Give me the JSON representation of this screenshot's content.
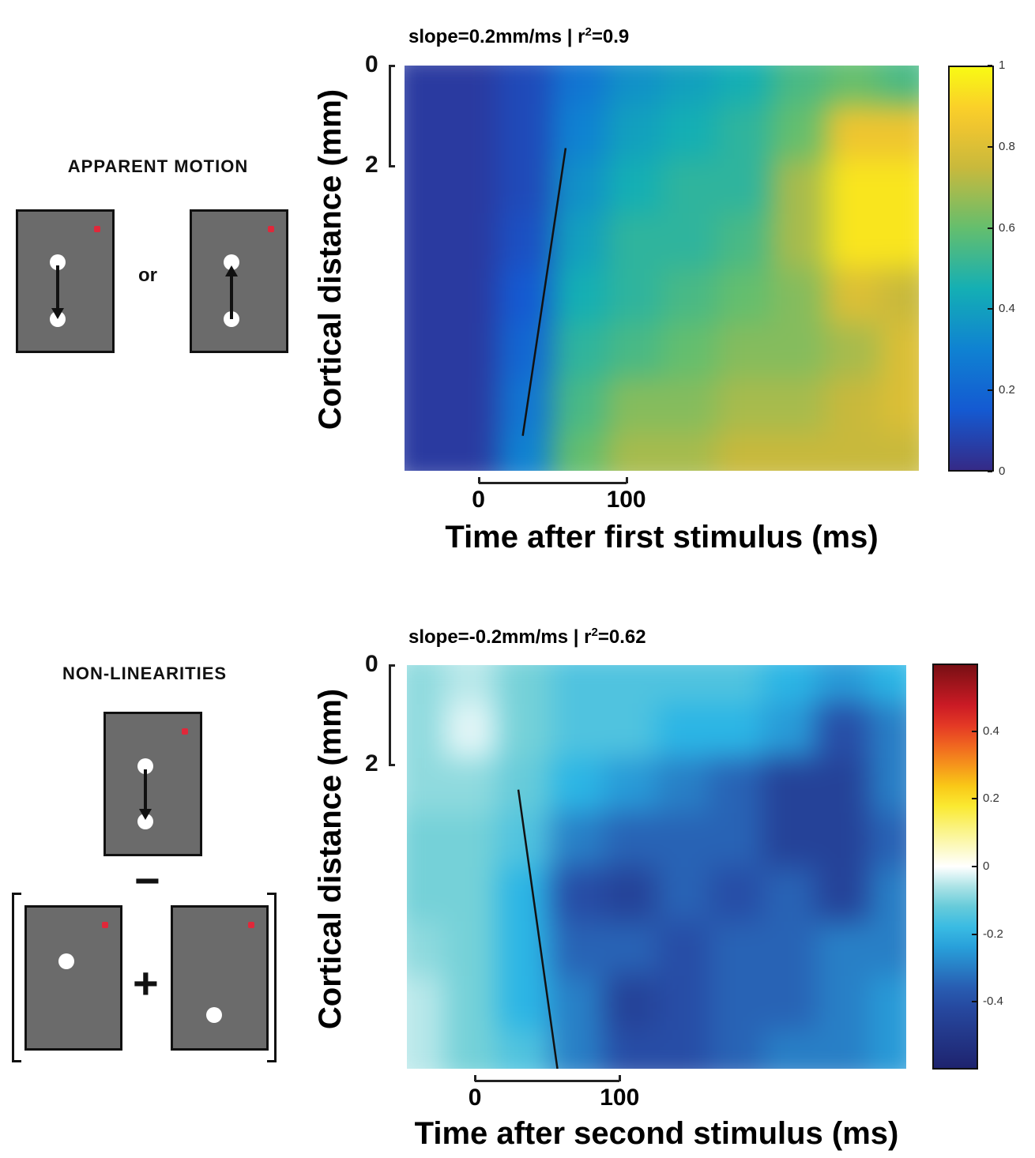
{
  "panels": {
    "top": {
      "stim_label": "APPARENT MOTION",
      "or_label": "or"
    },
    "bottom": {
      "stim_label": "NON-LINEARITIES",
      "minus": "−",
      "plus": "+"
    }
  },
  "chart_data": [
    {
      "type": "heatmap",
      "title": "slope=0.2mm/ms | r",
      "title_sup": "2",
      "title_tail": "=0.9",
      "xlabel": "Time after first stimulus (ms)",
      "ylabel": "Cortical distance (mm)",
      "x_scalebar": {
        "ticks": [
          "0",
          "100"
        ],
        "values": [
          0,
          100
        ]
      },
      "y_scalebar": {
        "ticks": [
          "0",
          "2"
        ],
        "values": [
          0,
          2
        ]
      },
      "xlim": [
        -50,
        298
      ],
      "ylim": [
        0,
        8.1
      ],
      "x": [
        -50,
        -15,
        20,
        55,
        90,
        125,
        160,
        195,
        230,
        265
      ],
      "y": [
        0,
        1,
        2,
        3,
        4,
        5,
        6,
        7
      ],
      "z": [
        [
          0.05,
          0.05,
          0.1,
          0.25,
          0.35,
          0.4,
          0.45,
          0.55,
          0.6,
          0.55
        ],
        [
          0.05,
          0.05,
          0.1,
          0.3,
          0.4,
          0.45,
          0.5,
          0.6,
          0.85,
          0.85
        ],
        [
          0.05,
          0.05,
          0.1,
          0.35,
          0.45,
          0.5,
          0.5,
          0.7,
          0.95,
          0.95
        ],
        [
          0.05,
          0.05,
          0.12,
          0.4,
          0.5,
          0.5,
          0.55,
          0.7,
          0.95,
          0.95
        ],
        [
          0.05,
          0.05,
          0.15,
          0.45,
          0.5,
          0.55,
          0.6,
          0.65,
          0.8,
          0.75
        ],
        [
          0.05,
          0.05,
          0.2,
          0.5,
          0.55,
          0.6,
          0.65,
          0.65,
          0.7,
          0.8
        ],
        [
          0.05,
          0.05,
          0.25,
          0.55,
          0.65,
          0.65,
          0.7,
          0.7,
          0.75,
          0.8
        ],
        [
          0.05,
          0.05,
          0.3,
          0.6,
          0.7,
          0.7,
          0.75,
          0.75,
          0.75,
          0.75
        ]
      ],
      "fit_line": [
        [
          30,
          7.4
        ],
        [
          59,
          1.65
        ]
      ],
      "colormap": "parula",
      "colorbar": {
        "range": [
          0,
          1
        ],
        "ticks": [
          "0",
          "0.2",
          "0.4",
          "0.6",
          "0.8",
          "1"
        ],
        "values": [
          0,
          0.2,
          0.4,
          0.6,
          0.8,
          1
        ]
      }
    },
    {
      "type": "heatmap",
      "title": "slope=-0.2mm/ms | r",
      "title_sup": "2",
      "title_tail": "=0.62",
      "xlabel": "Time after second stimulus (ms)",
      "ylabel": "Cortical distance (mm)",
      "x_scalebar": {
        "ticks": [
          "0",
          "100"
        ],
        "values": [
          0,
          100
        ]
      },
      "y_scalebar": {
        "ticks": [
          "0",
          "2"
        ],
        "values": [
          0,
          2
        ]
      },
      "xlim": [
        -47,
        298
      ],
      "ylim": [
        0,
        8.1
      ],
      "x": [
        -47,
        -12,
        23,
        58,
        93,
        128,
        163,
        198,
        233,
        268
      ],
      "y": [
        0,
        1,
        2,
        3,
        4,
        5,
        6,
        7
      ],
      "z": [
        [
          -0.08,
          -0.05,
          -0.1,
          -0.15,
          -0.15,
          -0.15,
          -0.15,
          -0.2,
          -0.25,
          -0.2
        ],
        [
          -0.08,
          -0.02,
          -0.1,
          -0.15,
          -0.15,
          -0.2,
          -0.2,
          -0.25,
          -0.4,
          -0.3
        ],
        [
          -0.08,
          -0.08,
          -0.12,
          -0.2,
          -0.25,
          -0.3,
          -0.35,
          -0.45,
          -0.45,
          -0.3
        ],
        [
          -0.1,
          -0.1,
          -0.15,
          -0.3,
          -0.35,
          -0.35,
          -0.35,
          -0.45,
          -0.45,
          -0.35
        ],
        [
          -0.1,
          -0.1,
          -0.2,
          -0.4,
          -0.45,
          -0.35,
          -0.4,
          -0.35,
          -0.45,
          -0.3
        ],
        [
          -0.08,
          -0.1,
          -0.2,
          -0.35,
          -0.35,
          -0.4,
          -0.35,
          -0.35,
          -0.3,
          -0.3
        ],
        [
          -0.05,
          -0.1,
          -0.2,
          -0.3,
          -0.45,
          -0.4,
          -0.35,
          -0.35,
          -0.3,
          -0.25
        ],
        [
          -0.05,
          -0.1,
          -0.15,
          -0.3,
          -0.4,
          -0.4,
          -0.35,
          -0.3,
          -0.3,
          -0.25
        ]
      ],
      "fit_line": [
        [
          30,
          2.5
        ],
        [
          57,
          8.1
        ]
      ],
      "colormap": "diverging-jet",
      "colorbar": {
        "range": [
          -0.6,
          0.6
        ],
        "ticks": [
          "-0.4",
          "-0.2",
          "0",
          "0.2",
          "0.4"
        ],
        "values": [
          -0.4,
          -0.2,
          0,
          0.2,
          0.4
        ]
      }
    }
  ]
}
